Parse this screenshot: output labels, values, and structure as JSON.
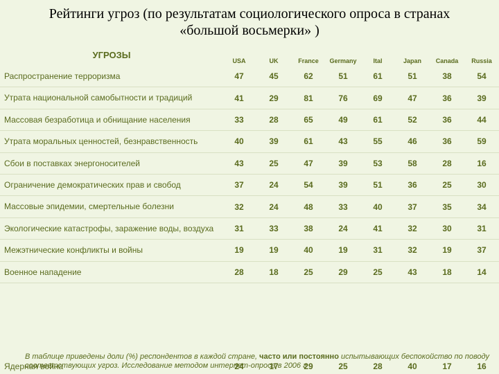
{
  "title_line1": "Рейтинги угроз (по результатам социологического опроса в странах",
  "title_line2": "«большой восьмерки» )",
  "threats_label": "УГРОЗЫ",
  "countries": [
    "USA",
    "UK",
    "France",
    "Germany",
    "Ital",
    "Japan",
    "Canada",
    "Russia"
  ],
  "rows": [
    {
      "label": "Распространение терроризма",
      "vals": [
        "47",
        "45",
        "62",
        "51",
        "61",
        "51",
        "38",
        "54"
      ]
    },
    {
      "label": "Утрата национальной самобытности и традиций",
      "vals": [
        "41",
        "29",
        "81",
        "76",
        "69",
        "47",
        "36",
        "39"
      ]
    },
    {
      "label": "Массовая безработица и обнищание населения",
      "vals": [
        "33",
        "28",
        "65",
        "49",
        "61",
        "52",
        "36",
        "44"
      ]
    },
    {
      "label": "Утрата моральных ценностей, безнравственность",
      "vals": [
        "40",
        "39",
        "61",
        "43",
        "55",
        "46",
        "36",
        "59"
      ]
    },
    {
      "label": "Сбои в поставках энергоносителей",
      "vals": [
        "43",
        "25",
        "47",
        "39",
        "53",
        "58",
        "28",
        "16"
      ]
    },
    {
      "label": "Ограничение демократических прав и свобод",
      "vals": [
        "37",
        "24",
        "54",
        "39",
        "51",
        "36",
        "25",
        "30"
      ]
    },
    {
      "label": "Массовые эпидемии, смертельные болезни",
      "vals": [
        "32",
        "24",
        "48",
        "33",
        "40",
        "37",
        "35",
        "34"
      ]
    },
    {
      "label": "Экологические катастрофы, заражение воды, воздуха",
      "vals": [
        "31",
        "33",
        "38",
        "24",
        "41",
        "32",
        "30",
        "31"
      ]
    },
    {
      "label": "Межэтнические конфликты и войны",
      "vals": [
        "19",
        "19",
        "40",
        "19",
        "31",
        "32",
        "19",
        "37"
      ]
    },
    {
      "label": "Военное нападение",
      "vals": [
        "28",
        "18",
        "25",
        "29",
        "25",
        "43",
        "18",
        "14"
      ]
    }
  ],
  "last_row": {
    "label": "Ядерная война",
    "vals": [
      "24",
      "17",
      "29",
      "25",
      "28",
      "40",
      "17",
      "16"
    ]
  },
  "footnote_part1": "В таблице приведены доли (%) респондентов в каждой стране, ",
  "footnote_italic": "часто или постоянно",
  "footnote_part2": " испытывающих беспокойство по поводу соответствующих угроз. Исследование методом интернет-опроса в 2006 г"
}
